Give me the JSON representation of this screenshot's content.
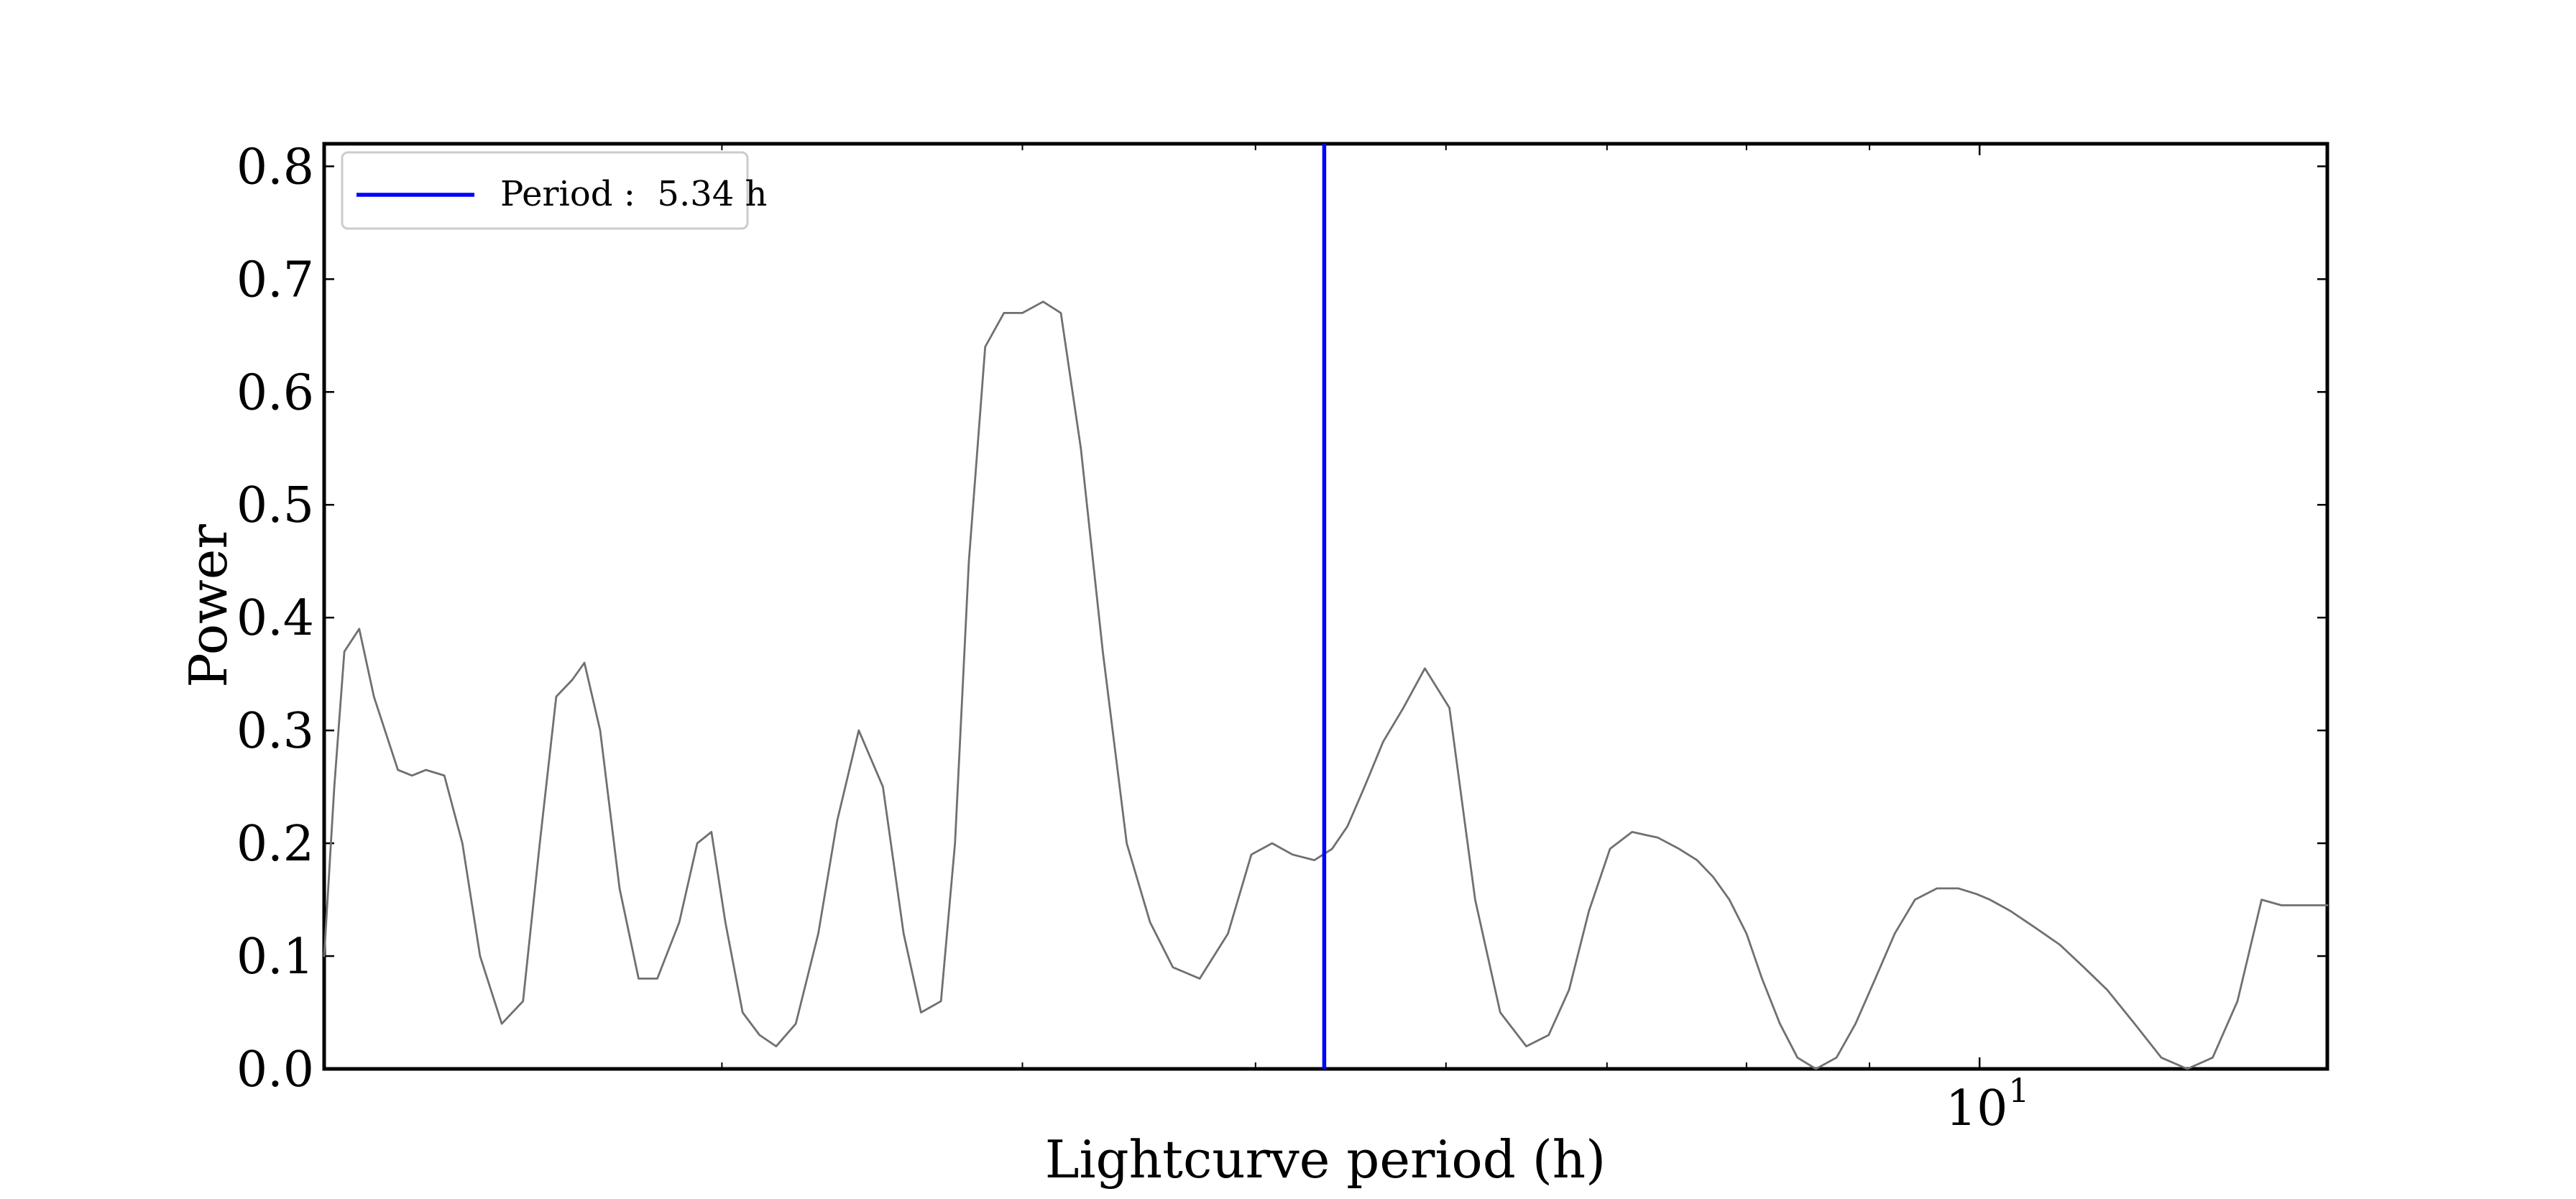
{
  "chart_data": {
    "type": "line",
    "title": "",
    "xlabel": "Lightcurve period (h)",
    "ylabel": "Power",
    "xscale": "log",
    "xlim": [
      2.05,
      13.95
    ],
    "ylim": [
      0.0,
      0.82
    ],
    "xticks": [
      {
        "value": 10,
        "label": "10",
        "exponent": "1"
      }
    ],
    "yticks": [
      {
        "value": 0.0,
        "label": "0.0"
      },
      {
        "value": 0.1,
        "label": "0.1"
      },
      {
        "value": 0.2,
        "label": "0.2"
      },
      {
        "value": 0.3,
        "label": "0.3"
      },
      {
        "value": 0.4,
        "label": "0.4"
      },
      {
        "value": 0.5,
        "label": "0.5"
      },
      {
        "value": 0.6,
        "label": "0.6"
      },
      {
        "value": 0.7,
        "label": "0.7"
      },
      {
        "value": 0.8,
        "label": "0.8"
      }
    ],
    "minor_xticks": [
      3,
      4,
      5,
      6,
      7,
      8,
      9
    ],
    "grid": false,
    "legend_position": "top-left",
    "series": [
      {
        "color": "#707070",
        "style": "line",
        "x": [
          2.05,
          2.07,
          2.09,
          2.12,
          2.15,
          2.2,
          2.23,
          2.26,
          2.3,
          2.34,
          2.38,
          2.43,
          2.48,
          2.52,
          2.56,
          2.6,
          2.63,
          2.67,
          2.72,
          2.77,
          2.82,
          2.88,
          2.93,
          2.97,
          3.01,
          3.06,
          3.11,
          3.16,
          3.22,
          3.29,
          3.35,
          3.42,
          3.5,
          3.57,
          3.63,
          3.7,
          3.75,
          3.8,
          3.86,
          3.93,
          4.0,
          4.08,
          4.15,
          4.23,
          4.32,
          4.42,
          4.52,
          4.62,
          4.74,
          4.87,
          4.98,
          5.08,
          5.18,
          5.29,
          5.38,
          5.46,
          5.55,
          5.65,
          5.76,
          5.88,
          6.02,
          6.17,
          6.32,
          6.48,
          6.62,
          6.75,
          6.88,
          7.02,
          7.17,
          7.35,
          7.5,
          7.63,
          7.75,
          7.87,
          8.0,
          8.12,
          8.26,
          8.4,
          8.55,
          8.72,
          8.88,
          9.05,
          9.22,
          9.4,
          9.6,
          9.8,
          9.97,
          10.1,
          10.3,
          10.55,
          10.8,
          11.05,
          11.3,
          11.6,
          11.9,
          12.2,
          12.5,
          12.8,
          13.1,
          13.35,
          13.55,
          13.75,
          13.95
        ],
        "y": [
          0.1,
          0.25,
          0.37,
          0.39,
          0.33,
          0.265,
          0.26,
          0.265,
          0.26,
          0.2,
          0.1,
          0.04,
          0.06,
          0.2,
          0.33,
          0.345,
          0.36,
          0.3,
          0.16,
          0.08,
          0.08,
          0.13,
          0.2,
          0.21,
          0.13,
          0.05,
          0.03,
          0.02,
          0.04,
          0.12,
          0.22,
          0.3,
          0.25,
          0.12,
          0.05,
          0.06,
          0.2,
          0.45,
          0.64,
          0.67,
          0.67,
          0.68,
          0.67,
          0.55,
          0.37,
          0.2,
          0.13,
          0.09,
          0.08,
          0.12,
          0.19,
          0.2,
          0.19,
          0.185,
          0.195,
          0.215,
          0.25,
          0.29,
          0.32,
          0.355,
          0.32,
          0.15,
          0.05,
          0.02,
          0.03,
          0.07,
          0.14,
          0.195,
          0.21,
          0.205,
          0.195,
          0.185,
          0.17,
          0.15,
          0.12,
          0.08,
          0.04,
          0.01,
          0.0,
          0.01,
          0.04,
          0.08,
          0.12,
          0.15,
          0.16,
          0.16,
          0.155,
          0.15,
          0.14,
          0.125,
          0.11,
          0.09,
          0.07,
          0.04,
          0.01,
          0.0,
          0.01,
          0.06,
          0.15,
          0.145,
          0.145,
          0.145,
          0.145
        ]
      },
      {
        "name": "Period :  5.34 h",
        "color": "#0000ff",
        "style": "vertical-line",
        "x": 5.34
      }
    ]
  }
}
